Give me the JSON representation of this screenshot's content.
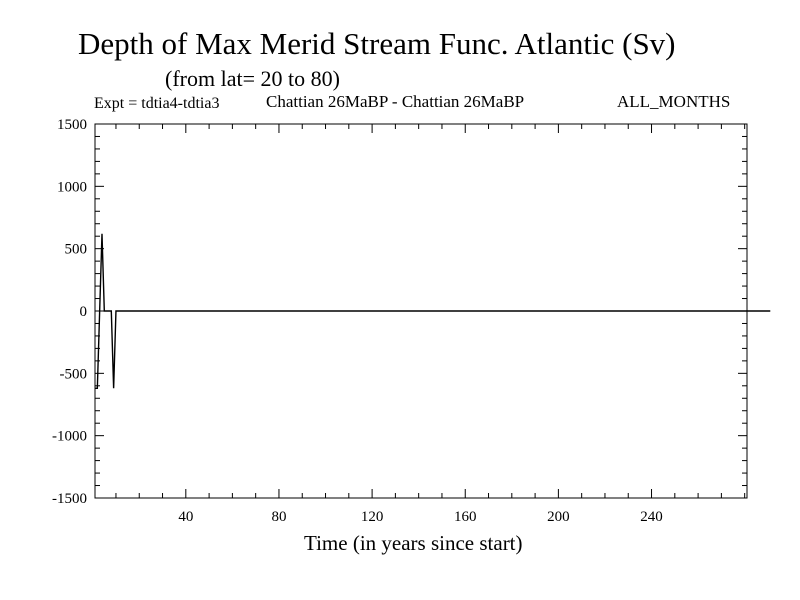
{
  "header": {
    "title": "Depth of Max Merid Stream Func. Atlantic (Sv)",
    "subtitle": "(from lat= 20 to 80)",
    "experiment": "Expt = tdtia4-tdtia3",
    "period": "Chattian  26MaBP - Chattian  26MaBP",
    "months": "ALL_MONTHS"
  },
  "chart_data": {
    "type": "line",
    "title": "Depth of Max Merid Stream Func. Atlantic (Sv)",
    "xlabel": "Time (in years since start)",
    "ylabel": "",
    "xlim": [
      1,
      281
    ],
    "ylim": [
      -1500,
      1500
    ],
    "xticks": [
      40,
      80,
      120,
      160,
      200,
      240
    ],
    "yticks": [
      -1500,
      -1000,
      -500,
      0,
      500,
      1000,
      1500
    ],
    "grid": false,
    "color": "#000000",
    "series": [
      {
        "values": [
          -620,
          -620,
          0,
          620,
          0,
          0,
          0,
          0,
          -620,
          0,
          0,
          0,
          0,
          0,
          0,
          0,
          0,
          0,
          0,
          0,
          0,
          0,
          0,
          0,
          0,
          0,
          0,
          0,
          0,
          0,
          0,
          0,
          0,
          0,
          0,
          0,
          0,
          0,
          0,
          0,
          0,
          0,
          0,
          0,
          0,
          0,
          0,
          0,
          0,
          0,
          0,
          0,
          0,
          0,
          0,
          0,
          0,
          0,
          0,
          0,
          0,
          0,
          0,
          0,
          0,
          0,
          0,
          0,
          0,
          0,
          0,
          0,
          0,
          0,
          0,
          0,
          0,
          0,
          0,
          0,
          0,
          0,
          0,
          0,
          0,
          0,
          0,
          0,
          0,
          0,
          0,
          0,
          0,
          0,
          0,
          0,
          0,
          0,
          0,
          0,
          0,
          0,
          0,
          0,
          0,
          0,
          0,
          0,
          0,
          0,
          0,
          0,
          0,
          0,
          0,
          0,
          0,
          0,
          0,
          0,
          0,
          0,
          0,
          0,
          0,
          0,
          0,
          0,
          0,
          0,
          0,
          0,
          0,
          0,
          0,
          0,
          0,
          0,
          0,
          0,
          0,
          0,
          0,
          0,
          0,
          0,
          0,
          0,
          0,
          0,
          0,
          0,
          0,
          0,
          0,
          0,
          0,
          0,
          0,
          0,
          0,
          0,
          0,
          0,
          0,
          0,
          0,
          0,
          0,
          0,
          0,
          0,
          0,
          0,
          0,
          0,
          0,
          0,
          0,
          0,
          0,
          0,
          0,
          0,
          0,
          0,
          0,
          0,
          0,
          0,
          0,
          0,
          0,
          0,
          0,
          0,
          0,
          0,
          0,
          0,
          0,
          0,
          0,
          0,
          0,
          0,
          0,
          0,
          0,
          0,
          0,
          0,
          0,
          0,
          0,
          0,
          0,
          0,
          0,
          0,
          0,
          0,
          0,
          0,
          0,
          0,
          0,
          0,
          0,
          0,
          0,
          0,
          0,
          0,
          0,
          0,
          0,
          0,
          0,
          0,
          0,
          0,
          0,
          0,
          0,
          0,
          0,
          0,
          0,
          0,
          0,
          0,
          0,
          0,
          0,
          0,
          0,
          0,
          0,
          0,
          0,
          0,
          0,
          0,
          0,
          0,
          0,
          0,
          0,
          0,
          0,
          0,
          0,
          0,
          0,
          0,
          0,
          0,
          0,
          0,
          0,
          0,
          0,
          0,
          0,
          0,
          0,
          0,
          0,
          0,
          0
        ]
      }
    ]
  }
}
